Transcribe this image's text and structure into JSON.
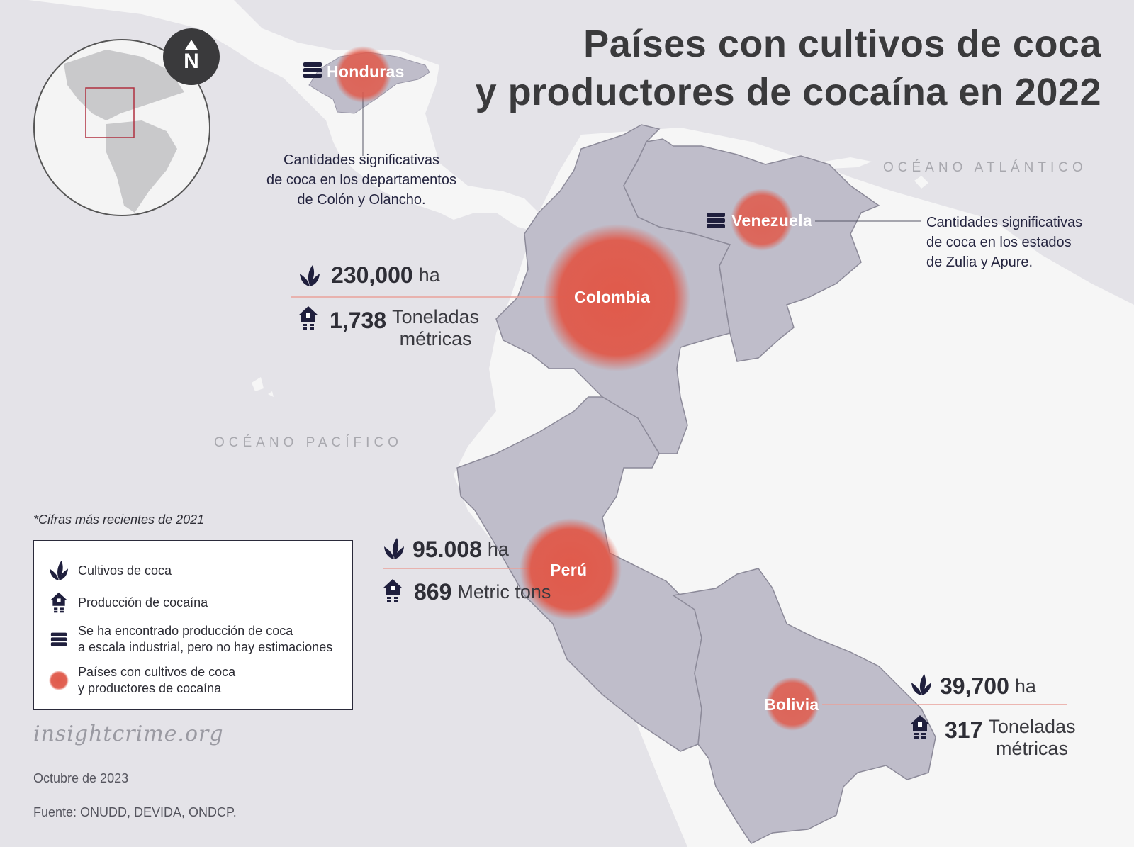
{
  "title": {
    "line1": "Países con cultivos de coca",
    "line2": "y productores de cocaína en 2022"
  },
  "oceans": {
    "atlantic": "OCÉANO ATLÁNTICO",
    "pacific": "OCÉANO PACÍFICO"
  },
  "north_arrow": "N",
  "countries": {
    "honduras": {
      "name": "Honduras",
      "note": "Cantidades significativas\nde coca en los departamentos\nde Colón y Olancho."
    },
    "venezuela": {
      "name": "Venezuela",
      "note": "Cantidades significativas\nde coca en los estados\nde Zulia y Apure."
    },
    "colombia": {
      "name": "Colombia",
      "coca_value": "230,000",
      "coca_unit": "ha",
      "cocaine_value": "1,738",
      "cocaine_unit": "Toneladas\nmétricas"
    },
    "peru": {
      "name": "Perú",
      "coca_value": "95.008",
      "coca_unit": "ha",
      "cocaine_value": "869",
      "cocaine_unit": "Metric tons"
    },
    "bolivia": {
      "name": "Bolivia",
      "coca_value": "39,700",
      "coca_unit": "ha",
      "cocaine_value": "317",
      "cocaine_unit": "Toneladas\nmétricas"
    }
  },
  "footnote": "*Cifras más recientes de 2021",
  "legend": {
    "coca": "Cultivos de coca",
    "cocaine": "Producción de cocaína",
    "industrial": "Se ha encontrado producción de coca\na escala industrial, pero no hay estimaciones",
    "countries": "Países con cultivos de coca\ny productores de cocaína"
  },
  "brand": "insightcrime.org",
  "date": "Octubre de 2023",
  "source": "Fuente: ONUDD, DEVIDA, ONDCP.",
  "colors": {
    "background": "#e4e3e8",
    "land": "#f6f6f6",
    "highlight_country": "#bfbdca",
    "accent": "#e05a4b",
    "icon": "#1f1f3d"
  },
  "icons": {
    "coca": "leaf-icon",
    "cocaine": "lab-house-icon",
    "industrial": "stack-icon",
    "country": "red-dot-icon",
    "north": "north-arrow-icon"
  }
}
